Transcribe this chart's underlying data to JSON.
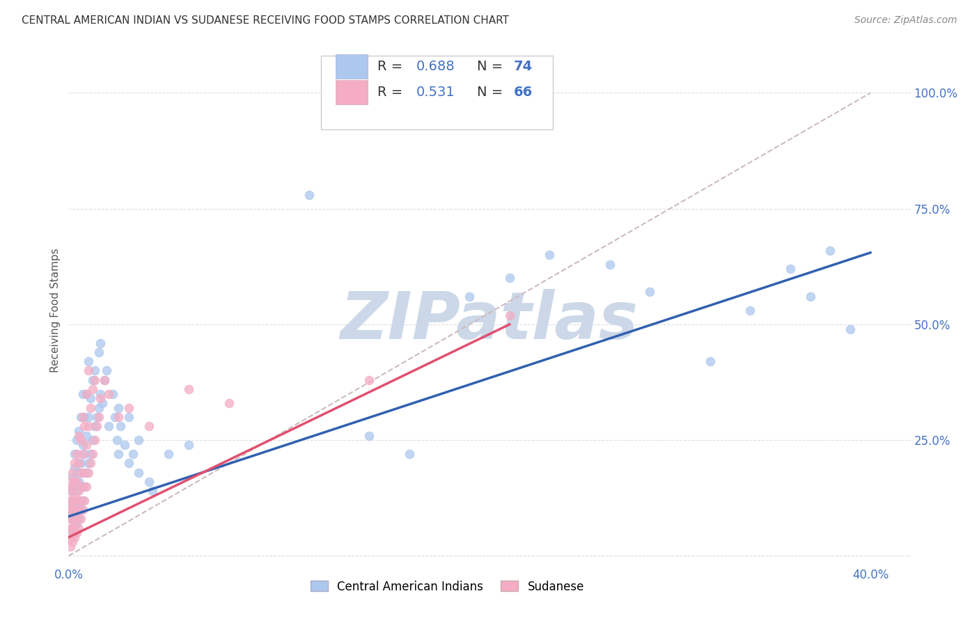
{
  "title": "CENTRAL AMERICAN INDIAN VS SUDANESE RECEIVING FOOD STAMPS CORRELATION CHART",
  "source": "Source: ZipAtlas.com",
  "ylabel": "Receiving Food Stamps",
  "xlim": [
    0.0,
    0.42
  ],
  "ylim": [
    -0.02,
    1.08
  ],
  "blue_color": "#adc8ee",
  "pink_color": "#f4adc4",
  "blue_line_color": "#3060b0",
  "pink_line_color": "#e05070",
  "diag_line_color": "#ccbbbb",
  "watermark": "ZIPatlas",
  "watermark_color": "#ccd8e8",
  "background_color": "#ffffff",
  "grid_color": "#dddddd",
  "blue_scatter": [
    [
      0.001,
      0.05
    ],
    [
      0.001,
      0.08
    ],
    [
      0.001,
      0.1
    ],
    [
      0.001,
      0.12
    ],
    [
      0.001,
      0.14
    ],
    [
      0.002,
      0.06
    ],
    [
      0.002,
      0.09
    ],
    [
      0.002,
      0.11
    ],
    [
      0.002,
      0.14
    ],
    [
      0.002,
      0.17
    ],
    [
      0.003,
      0.05
    ],
    [
      0.003,
      0.08
    ],
    [
      0.003,
      0.12
    ],
    [
      0.003,
      0.15
    ],
    [
      0.003,
      0.19
    ],
    [
      0.003,
      0.22
    ],
    [
      0.004,
      0.07
    ],
    [
      0.004,
      0.1
    ],
    [
      0.004,
      0.14
    ],
    [
      0.004,
      0.18
    ],
    [
      0.004,
      0.25
    ],
    [
      0.005,
      0.08
    ],
    [
      0.005,
      0.12
    ],
    [
      0.005,
      0.16
    ],
    [
      0.005,
      0.2
    ],
    [
      0.005,
      0.27
    ],
    [
      0.006,
      0.1
    ],
    [
      0.006,
      0.15
    ],
    [
      0.006,
      0.2
    ],
    [
      0.006,
      0.3
    ],
    [
      0.007,
      0.12
    ],
    [
      0.007,
      0.18
    ],
    [
      0.007,
      0.24
    ],
    [
      0.007,
      0.35
    ],
    [
      0.008,
      0.15
    ],
    [
      0.008,
      0.22
    ],
    [
      0.008,
      0.3
    ],
    [
      0.009,
      0.18
    ],
    [
      0.009,
      0.26
    ],
    [
      0.009,
      0.35
    ],
    [
      0.01,
      0.2
    ],
    [
      0.01,
      0.3
    ],
    [
      0.01,
      0.42
    ],
    [
      0.011,
      0.22
    ],
    [
      0.011,
      0.34
    ],
    [
      0.012,
      0.25
    ],
    [
      0.012,
      0.38
    ],
    [
      0.013,
      0.28
    ],
    [
      0.013,
      0.4
    ],
    [
      0.014,
      0.3
    ],
    [
      0.015,
      0.32
    ],
    [
      0.015,
      0.44
    ],
    [
      0.016,
      0.35
    ],
    [
      0.016,
      0.46
    ],
    [
      0.017,
      0.33
    ],
    [
      0.018,
      0.38
    ],
    [
      0.019,
      0.4
    ],
    [
      0.02,
      0.28
    ],
    [
      0.022,
      0.35
    ],
    [
      0.023,
      0.3
    ],
    [
      0.024,
      0.25
    ],
    [
      0.025,
      0.22
    ],
    [
      0.025,
      0.32
    ],
    [
      0.026,
      0.28
    ],
    [
      0.028,
      0.24
    ],
    [
      0.03,
      0.2
    ],
    [
      0.03,
      0.3
    ],
    [
      0.032,
      0.22
    ],
    [
      0.035,
      0.18
    ],
    [
      0.035,
      0.25
    ],
    [
      0.04,
      0.16
    ],
    [
      0.042,
      0.14
    ],
    [
      0.05,
      0.22
    ],
    [
      0.06,
      0.24
    ],
    [
      0.12,
      0.78
    ],
    [
      0.15,
      0.26
    ],
    [
      0.17,
      0.22
    ],
    [
      0.2,
      0.56
    ],
    [
      0.22,
      0.6
    ],
    [
      0.24,
      0.65
    ],
    [
      0.27,
      0.63
    ],
    [
      0.29,
      0.57
    ],
    [
      0.32,
      0.42
    ],
    [
      0.34,
      0.53
    ],
    [
      0.36,
      0.62
    ],
    [
      0.37,
      0.56
    ],
    [
      0.38,
      0.66
    ],
    [
      0.39,
      0.49
    ]
  ],
  "pink_scatter": [
    [
      0.001,
      0.02
    ],
    [
      0.001,
      0.04
    ],
    [
      0.001,
      0.06
    ],
    [
      0.001,
      0.08
    ],
    [
      0.001,
      0.1
    ],
    [
      0.001,
      0.12
    ],
    [
      0.001,
      0.14
    ],
    [
      0.001,
      0.16
    ],
    [
      0.002,
      0.03
    ],
    [
      0.002,
      0.06
    ],
    [
      0.002,
      0.08
    ],
    [
      0.002,
      0.1
    ],
    [
      0.002,
      0.12
    ],
    [
      0.002,
      0.15
    ],
    [
      0.002,
      0.18
    ],
    [
      0.003,
      0.04
    ],
    [
      0.003,
      0.07
    ],
    [
      0.003,
      0.1
    ],
    [
      0.003,
      0.13
    ],
    [
      0.003,
      0.16
    ],
    [
      0.003,
      0.2
    ],
    [
      0.004,
      0.05
    ],
    [
      0.004,
      0.08
    ],
    [
      0.004,
      0.12
    ],
    [
      0.004,
      0.16
    ],
    [
      0.004,
      0.22
    ],
    [
      0.005,
      0.06
    ],
    [
      0.005,
      0.1
    ],
    [
      0.005,
      0.14
    ],
    [
      0.005,
      0.2
    ],
    [
      0.005,
      0.26
    ],
    [
      0.006,
      0.08
    ],
    [
      0.006,
      0.12
    ],
    [
      0.006,
      0.18
    ],
    [
      0.006,
      0.25
    ],
    [
      0.007,
      0.1
    ],
    [
      0.007,
      0.15
    ],
    [
      0.007,
      0.22
    ],
    [
      0.007,
      0.3
    ],
    [
      0.008,
      0.12
    ],
    [
      0.008,
      0.18
    ],
    [
      0.008,
      0.28
    ],
    [
      0.009,
      0.15
    ],
    [
      0.009,
      0.24
    ],
    [
      0.009,
      0.35
    ],
    [
      0.01,
      0.18
    ],
    [
      0.01,
      0.28
    ],
    [
      0.01,
      0.4
    ],
    [
      0.011,
      0.2
    ],
    [
      0.011,
      0.32
    ],
    [
      0.012,
      0.22
    ],
    [
      0.012,
      0.36
    ],
    [
      0.013,
      0.25
    ],
    [
      0.013,
      0.38
    ],
    [
      0.014,
      0.28
    ],
    [
      0.015,
      0.3
    ],
    [
      0.016,
      0.34
    ],
    [
      0.018,
      0.38
    ],
    [
      0.02,
      0.35
    ],
    [
      0.025,
      0.3
    ],
    [
      0.03,
      0.32
    ],
    [
      0.04,
      0.28
    ],
    [
      0.06,
      0.36
    ],
    [
      0.08,
      0.33
    ],
    [
      0.15,
      0.38
    ],
    [
      0.22,
      0.52
    ]
  ],
  "blue_line_x": [
    0.0,
    0.4
  ],
  "blue_line_y": [
    0.085,
    0.655
  ],
  "pink_line_x": [
    0.0,
    0.22
  ],
  "pink_line_y": [
    0.04,
    0.5
  ],
  "diag_line_x": [
    0.0,
    0.4
  ],
  "diag_line_y": [
    0.0,
    1.0
  ]
}
